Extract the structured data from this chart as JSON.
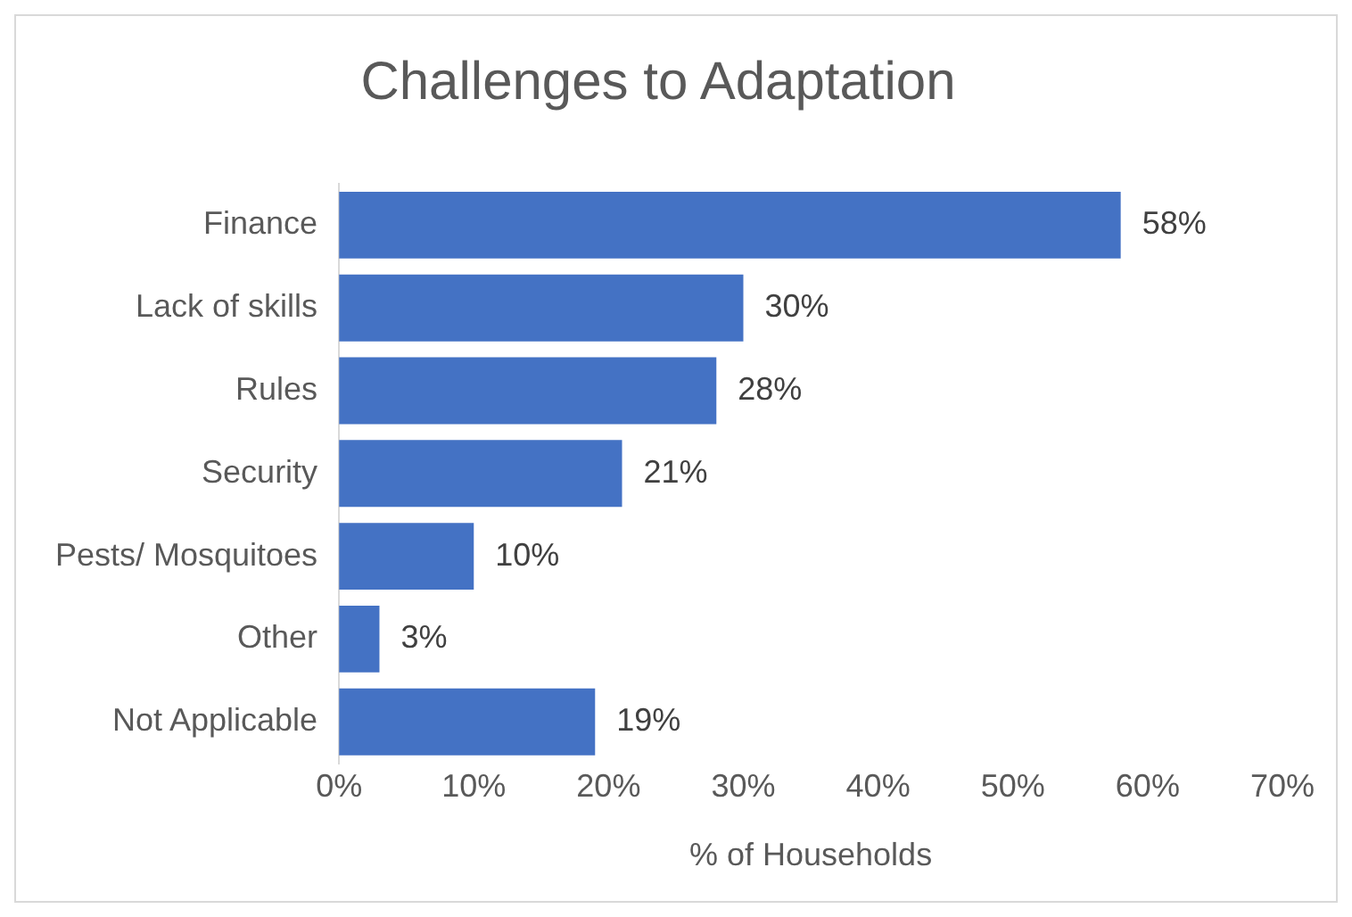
{
  "chart_data": {
    "type": "bar",
    "orientation": "horizontal",
    "title": "Challenges to Adaptation",
    "xlabel": "% of Households",
    "categories": [
      "Finance",
      "Lack of skills",
      "Rules",
      "Security",
      "Pests/ Mosquitoes",
      "Other",
      "Not Applicable"
    ],
    "values": [
      58,
      30,
      28,
      21,
      10,
      3,
      19
    ],
    "value_labels": [
      "58%",
      "30%",
      "28%",
      "21%",
      "10%",
      "3%",
      "19%"
    ],
    "color": "#4472c4",
    "xlim": [
      0,
      70
    ],
    "xticks": [
      {
        "value": 0,
        "label": "0%"
      },
      {
        "value": 10,
        "label": "10%"
      },
      {
        "value": 20,
        "label": "20%"
      },
      {
        "value": 30,
        "label": "30%"
      },
      {
        "value": 40,
        "label": "40%"
      },
      {
        "value": 50,
        "label": "50%"
      },
      {
        "value": 60,
        "label": "60%"
      },
      {
        "value": 70,
        "label": "70%"
      }
    ],
    "grid": false,
    "legend": false
  }
}
